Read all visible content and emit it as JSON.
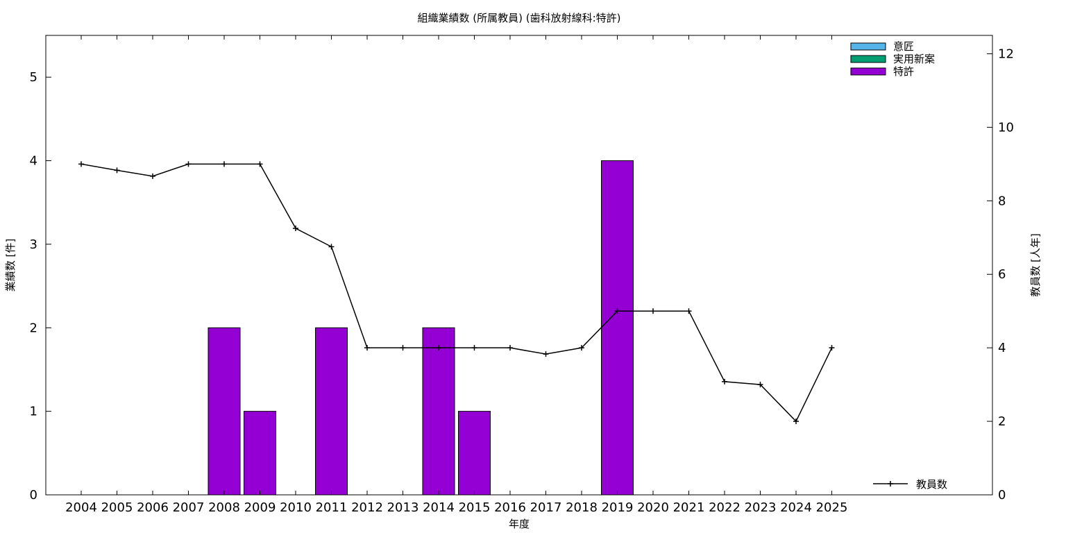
{
  "chart_data": {
    "type": "bar",
    "title": "組織業績数 (所属教員) (歯科放射線科:特許)",
    "xlabel": "年度",
    "ylabel_left": "業績数 [件]",
    "ylabel_right": "教員数 [人年]",
    "categories": [
      "2004",
      "2005",
      "2006",
      "2007",
      "2008",
      "2009",
      "2010",
      "2011",
      "2012",
      "2013",
      "2014",
      "2015",
      "2016",
      "2017",
      "2018",
      "2019",
      "2020",
      "2021",
      "2022",
      "2023",
      "2024",
      "2025"
    ],
    "ylim_left": [
      0,
      5.5
    ],
    "ylim_right": [
      0,
      12.5
    ],
    "yticks_left": [
      0,
      1,
      2,
      3,
      4,
      5
    ],
    "yticks_right": [
      0,
      2,
      4,
      6,
      8,
      10,
      12
    ],
    "grid": false,
    "legend_position": "top-right",
    "bar_series": [
      {
        "name": "意匠",
        "color": "#56b4e9",
        "values": [
          0,
          0,
          0,
          0,
          0,
          0,
          0,
          0,
          0,
          0,
          0,
          0,
          0,
          0,
          0,
          0,
          0,
          0,
          0,
          0,
          0,
          0
        ]
      },
      {
        "name": "実用新案",
        "color": "#009e73",
        "values": [
          0,
          0,
          0,
          0,
          0,
          0,
          0,
          0,
          0,
          0,
          0,
          0,
          0,
          0,
          0,
          0,
          0,
          0,
          0,
          0,
          0,
          0
        ]
      },
      {
        "name": "特許",
        "color": "#9400d3",
        "values": [
          0,
          0,
          0,
          0,
          2,
          1,
          0,
          2,
          0,
          0,
          2,
          1,
          0,
          0,
          0,
          4,
          0,
          0,
          0,
          0,
          0,
          0
        ]
      }
    ],
    "line_series": {
      "name": "教員数",
      "color": "#000000",
      "axis": "right",
      "values": [
        9.0,
        8.83,
        8.67,
        9.0,
        9.0,
        9.0,
        7.25,
        6.75,
        4.0,
        4.0,
        4.0,
        4.0,
        4.0,
        3.83,
        4.0,
        5.0,
        5.0,
        5.0,
        3.08,
        3.0,
        2.0,
        4.0
      ]
    },
    "line_legend_position": "bottom-right"
  }
}
